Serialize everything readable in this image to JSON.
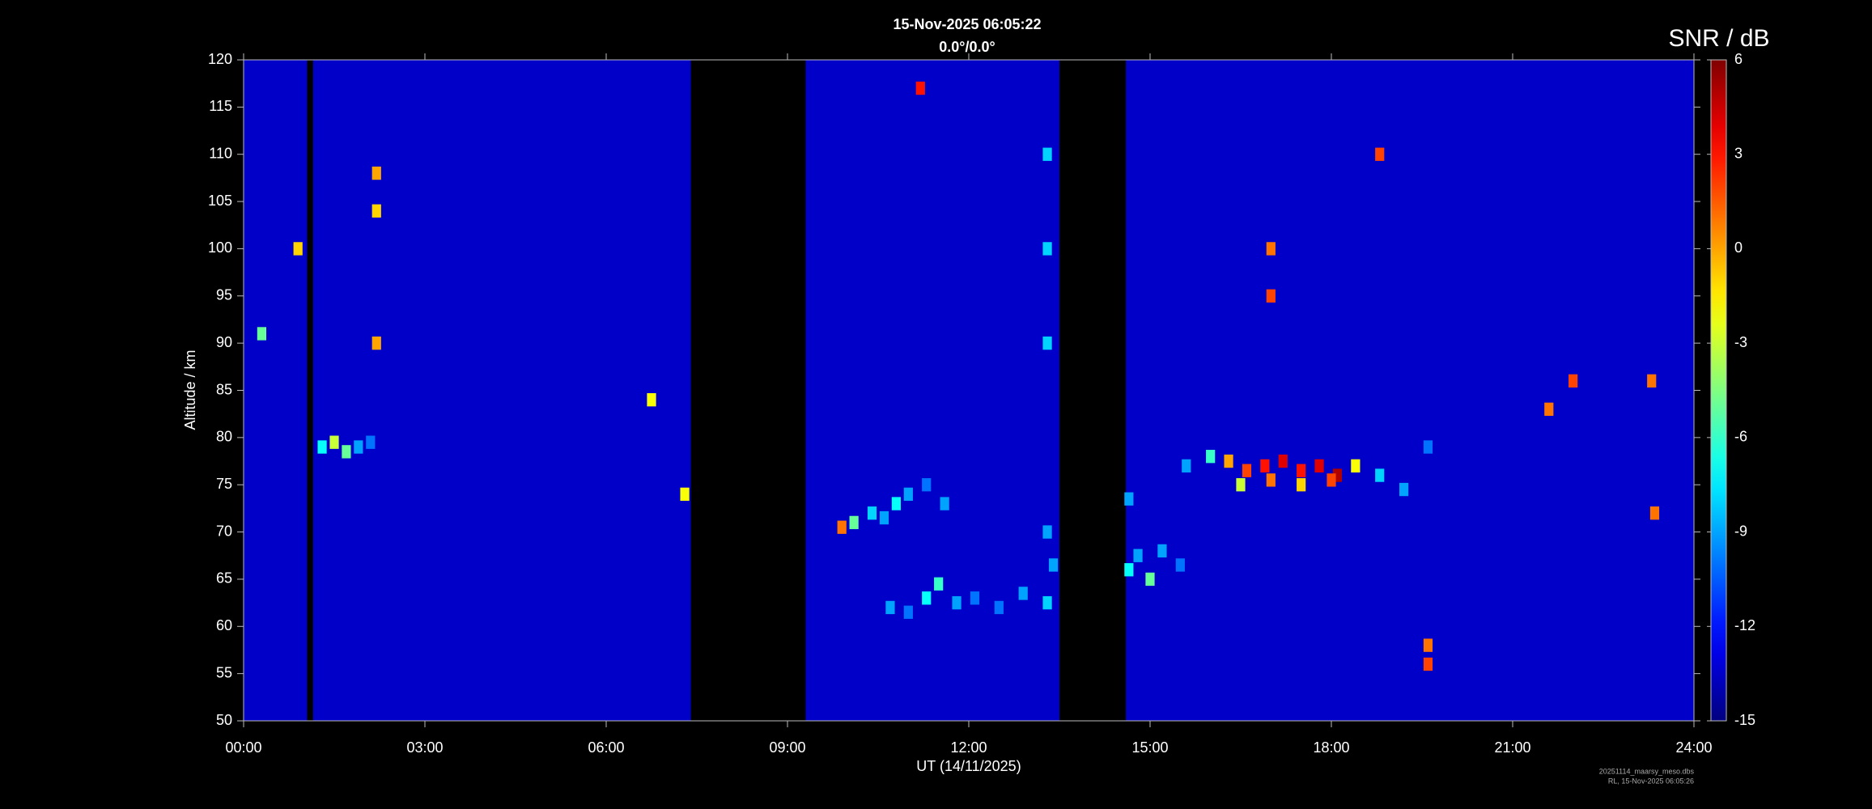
{
  "chart_data": {
    "type": "heatmap",
    "title": "15-Nov-2025 06:05:22",
    "subtitle": "0.0°/0.0°",
    "xlabel": "UT (14/11/2025)",
    "ylabel": "Altitude / km",
    "xlim": [
      0,
      24
    ],
    "xticks": [
      {
        "value": 0,
        "label": "00:00"
      },
      {
        "value": 3,
        "label": "03:00"
      },
      {
        "value": 6,
        "label": "06:00"
      },
      {
        "value": 9,
        "label": "09:00"
      },
      {
        "value": 12,
        "label": "12:00"
      },
      {
        "value": 15,
        "label": "15:00"
      },
      {
        "value": 18,
        "label": "18:00"
      },
      {
        "value": 21,
        "label": "21:00"
      },
      {
        "value": 24,
        "label": "24:00"
      }
    ],
    "ylim": [
      50,
      120
    ],
    "yticks": [
      50,
      55,
      60,
      65,
      70,
      75,
      80,
      85,
      90,
      95,
      100,
      105,
      110,
      115,
      120
    ],
    "colorbar_label": "SNR / dB",
    "clim": [
      -15,
      6
    ],
    "cticks": [
      -15,
      -12,
      -9,
      -6,
      -3,
      0,
      3,
      6
    ],
    "colormap": "jet",
    "background": -13.5,
    "coverage": [
      [
        0,
        1.05
      ],
      [
        1.15,
        7.4
      ],
      [
        9.3,
        13.5
      ],
      [
        14.6,
        24
      ]
    ],
    "echoes": {
      "x": [
        15.6,
        16.0,
        16.3,
        16.6,
        16.9,
        17.2,
        17.5,
        17.8,
        18.1,
        18.4,
        18.8,
        19.2,
        19.6,
        16.5,
        17.0,
        17.5,
        18.0,
        1.3,
        1.5,
        1.7,
        1.9,
        2.1,
        9.9,
        10.1,
        10.4,
        10.6,
        10.8,
        11.0,
        11.3,
        11.6,
        10.7,
        11.0,
        11.3,
        11.5,
        11.8,
        12.1,
        12.5,
        12.9,
        13.3,
        13.4,
        14.65,
        14.8,
        15.0,
        15.2,
        15.5,
        14.65,
        2.2,
        2.2,
        2.2,
        0.9,
        0.3,
        13.3,
        13.3,
        13.3,
        13.3,
        17.0,
        17.0,
        19.6,
        19.6,
        23.35,
        23.3,
        6.75,
        7.3,
        11.2,
        18.8,
        22.0,
        21.6
      ],
      "y": [
        77,
        78,
        77.5,
        76.5,
        77,
        77.5,
        76.5,
        77,
        76,
        77,
        76,
        74.5,
        79,
        75,
        75.5,
        75,
        75.5,
        79,
        79.5,
        78.5,
        79,
        79.5,
        70.5,
        71,
        72,
        71.5,
        73,
        74,
        75,
        73,
        62,
        61.5,
        63,
        64.5,
        62.5,
        63,
        62,
        63.5,
        62.5,
        66.5,
        66,
        67.5,
        65,
        68,
        66.5,
        73.5,
        108,
        104,
        90,
        100,
        91,
        90,
        100,
        110,
        70,
        100,
        95,
        58,
        56,
        72,
        86,
        84,
        74,
        117,
        110,
        86,
        83
      ],
      "values": [
        -9,
        -6,
        0,
        2,
        3,
        4,
        3,
        4,
        5,
        -2,
        -8,
        -9,
        -10,
        -3,
        1,
        -1,
        2,
        -7,
        -3,
        -5,
        -9,
        -10,
        1,
        -5,
        -8,
        -9,
        -7,
        -9,
        -10,
        -9,
        -9,
        -10,
        -7,
        -6,
        -9,
        -10,
        -10,
        -9,
        -8,
        -9,
        -7,
        -9,
        -5,
        -9,
        -10,
        -9,
        0,
        -1,
        0,
        -1,
        -5,
        -8,
        -8,
        -8,
        -9,
        1,
        2,
        1,
        2,
        1,
        1,
        -2,
        -2,
        3,
        2,
        2,
        1
      ]
    },
    "file_note": "20251114_maarsy_meso.dbs",
    "stamp_note": "RL, 15-Nov-2025 06:05:26"
  }
}
